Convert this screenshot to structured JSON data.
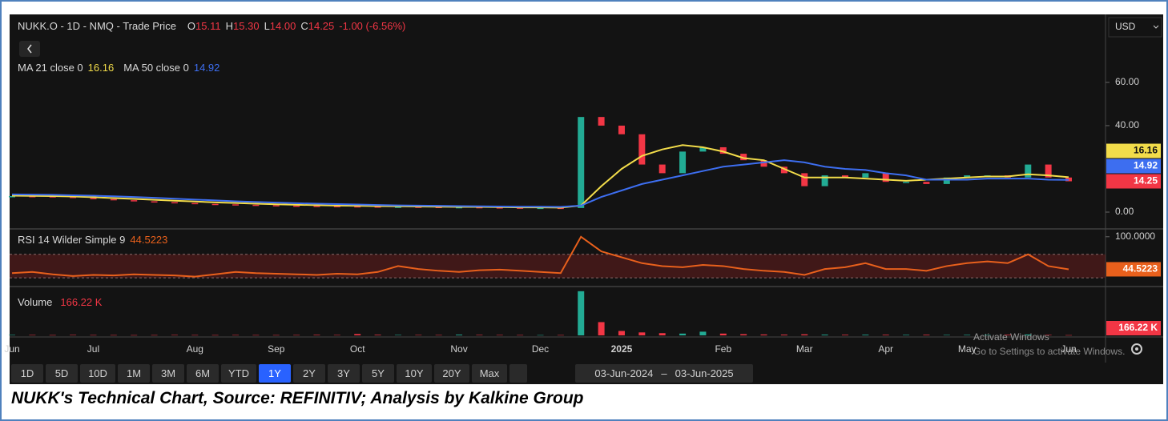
{
  "chart_data": [
    {
      "type": "line",
      "title": "NUKK.O - 1D - NMQ - Trade Price",
      "ohlc": [
        {
          "label": "O",
          "value": "15.11"
        },
        {
          "label": "H",
          "value": "15.30"
        },
        {
          "label": "L",
          "value": "14.00"
        },
        {
          "label": "C",
          "value": "14.25"
        }
      ],
      "change": "-1.00 (-6.56%)",
      "categories": [
        "Jun",
        null,
        null,
        null,
        "Jul",
        null,
        null,
        null,
        null,
        "Aug",
        null,
        null,
        null,
        "Sep",
        null,
        null,
        null,
        "Oct",
        null,
        null,
        null,
        null,
        "Nov",
        null,
        null,
        null,
        "Dec",
        null,
        null,
        null,
        "2025",
        null,
        null,
        null,
        null,
        "Feb",
        null,
        null,
        null,
        "Mar",
        null,
        null,
        null,
        "Apr",
        null,
        null,
        null,
        "May",
        null,
        null,
        null,
        null,
        "Jun"
      ],
      "series": [
        {
          "style": "candle",
          "color": "#22ab94",
          "down_color": "#f23645",
          "values": [
            7.4,
            7.3,
            7.2,
            6.5,
            6.0,
            5.5,
            5.0,
            4.6,
            4.2,
            3.8,
            3.6,
            3.4,
            3.2,
            3.0,
            2.9,
            2.8,
            2.7,
            2.6,
            2.5,
            2.5,
            2.4,
            2.3,
            2.3,
            2.2,
            2.1,
            2.0,
            2.0,
            1.9,
            44,
            40,
            36,
            22,
            18,
            28,
            30,
            27,
            24,
            21,
            18,
            12,
            17,
            16,
            18,
            14,
            14,
            13,
            16,
            17,
            17,
            16,
            22,
            16,
            14.25
          ]
        },
        {
          "name": "MA 21 close 0",
          "color": "#f2dc4a",
          "values": [
            7.6,
            7.5,
            7.4,
            7.2,
            6.9,
            6.5,
            6.1,
            5.7,
            5.3,
            4.9,
            4.5,
            4.2,
            3.9,
            3.6,
            3.4,
            3.2,
            3.0,
            2.9,
            2.8,
            2.7,
            2.6,
            2.5,
            2.4,
            2.4,
            2.3,
            2.2,
            2.2,
            2.1,
            3,
            12,
            20,
            26,
            29,
            31,
            30,
            28,
            25,
            24,
            20,
            16,
            16,
            16,
            15.5,
            15,
            14.5,
            15,
            15.5,
            16,
            16.5,
            16.5,
            17.5,
            17,
            16.16
          ]
        },
        {
          "name": "MA 50 close 0",
          "color": "#3d6ef0",
          "values": [
            8.2,
            8.1,
            8.0,
            7.8,
            7.6,
            7.3,
            7.0,
            6.6,
            6.2,
            5.8,
            5.4,
            5.0,
            4.7,
            4.4,
            4.1,
            3.9,
            3.7,
            3.5,
            3.3,
            3.1,
            3.0,
            2.9,
            2.8,
            2.7,
            2.6,
            2.5,
            2.5,
            2.4,
            3,
            7,
            10,
            13,
            15,
            17,
            19,
            21,
            22,
            23,
            24,
            23,
            21,
            20,
            19.5,
            18,
            17,
            15,
            15,
            15,
            15.5,
            15.5,
            15.5,
            15,
            14.92
          ]
        }
      ],
      "ylim": [
        -7.4,
        90.7
      ],
      "yticks": [
        {
          "value": 0,
          "label": "0.00"
        },
        {
          "value": 40,
          "label": "40.00"
        },
        {
          "value": 60,
          "label": "60.00"
        }
      ]
    },
    {
      "type": "line",
      "title": "RSI 14 Wilder Simple 9",
      "color": "#e8601c",
      "values": [
        38,
        40,
        36,
        33,
        35,
        34,
        36,
        35,
        34,
        32,
        36,
        40,
        38,
        37,
        36,
        35,
        37,
        36,
        40,
        50,
        45,
        42,
        40,
        43,
        44,
        42,
        40,
        38,
        100,
        75,
        65,
        55,
        50,
        48,
        52,
        50,
        45,
        42,
        40,
        35,
        45,
        48,
        55,
        45,
        45,
        42,
        50,
        55,
        58,
        55,
        70,
        50,
        44.5223
      ],
      "band": [
        30,
        70
      ],
      "ylim": [
        16.5,
        112
      ],
      "yticks": [
        {
          "value": 100,
          "label": "100.0000"
        }
      ]
    },
    {
      "type": "bar",
      "title": "Volume",
      "values": [
        300,
        250,
        200,
        280,
        220,
        200,
        180,
        200,
        260,
        220,
        200,
        240,
        210,
        200,
        230,
        350,
        250,
        900,
        400,
        300,
        260,
        240,
        500,
        300,
        250,
        220,
        200,
        210,
        30000,
        9000,
        3000,
        2000,
        1500,
        1200,
        2500,
        1200,
        800,
        600,
        500,
        700,
        500,
        400,
        450,
        400,
        350,
        400,
        300,
        350,
        300,
        400,
        600,
        300,
        166.22
      ],
      "value_labels": [
        null,
        null,
        null,
        null,
        null,
        null,
        null,
        null,
        null,
        null,
        null,
        null,
        null,
        null,
        null,
        null,
        null,
        null,
        null,
        null,
        null,
        null,
        null,
        null,
        null,
        null,
        null,
        null,
        null,
        null,
        null,
        null,
        null,
        null,
        null,
        null,
        null,
        null,
        null,
        null,
        null,
        null,
        null,
        null,
        null,
        null,
        null,
        null,
        null,
        null,
        null,
        null,
        "166.22 K"
      ],
      "ylim": [
        0,
        31000
      ]
    }
  ],
  "currency": "USD",
  "ranges": [
    "1D",
    "5D",
    "10D",
    "1M",
    "3M",
    "6M",
    "YTD",
    "1Y",
    "2Y",
    "3Y",
    "5Y",
    "10Y",
    "20Y",
    "Max"
  ],
  "active_range": "1Y",
  "date_from": "03-Jun-2024",
  "date_to": "03-Jun-2025",
  "watermark": {
    "title": "Activate Windows",
    "text": "Go to Settings to activate Windows."
  },
  "caption": "NUKK's Technical Chart, Source: REFINITIV; Analysis by Kalkine Group"
}
